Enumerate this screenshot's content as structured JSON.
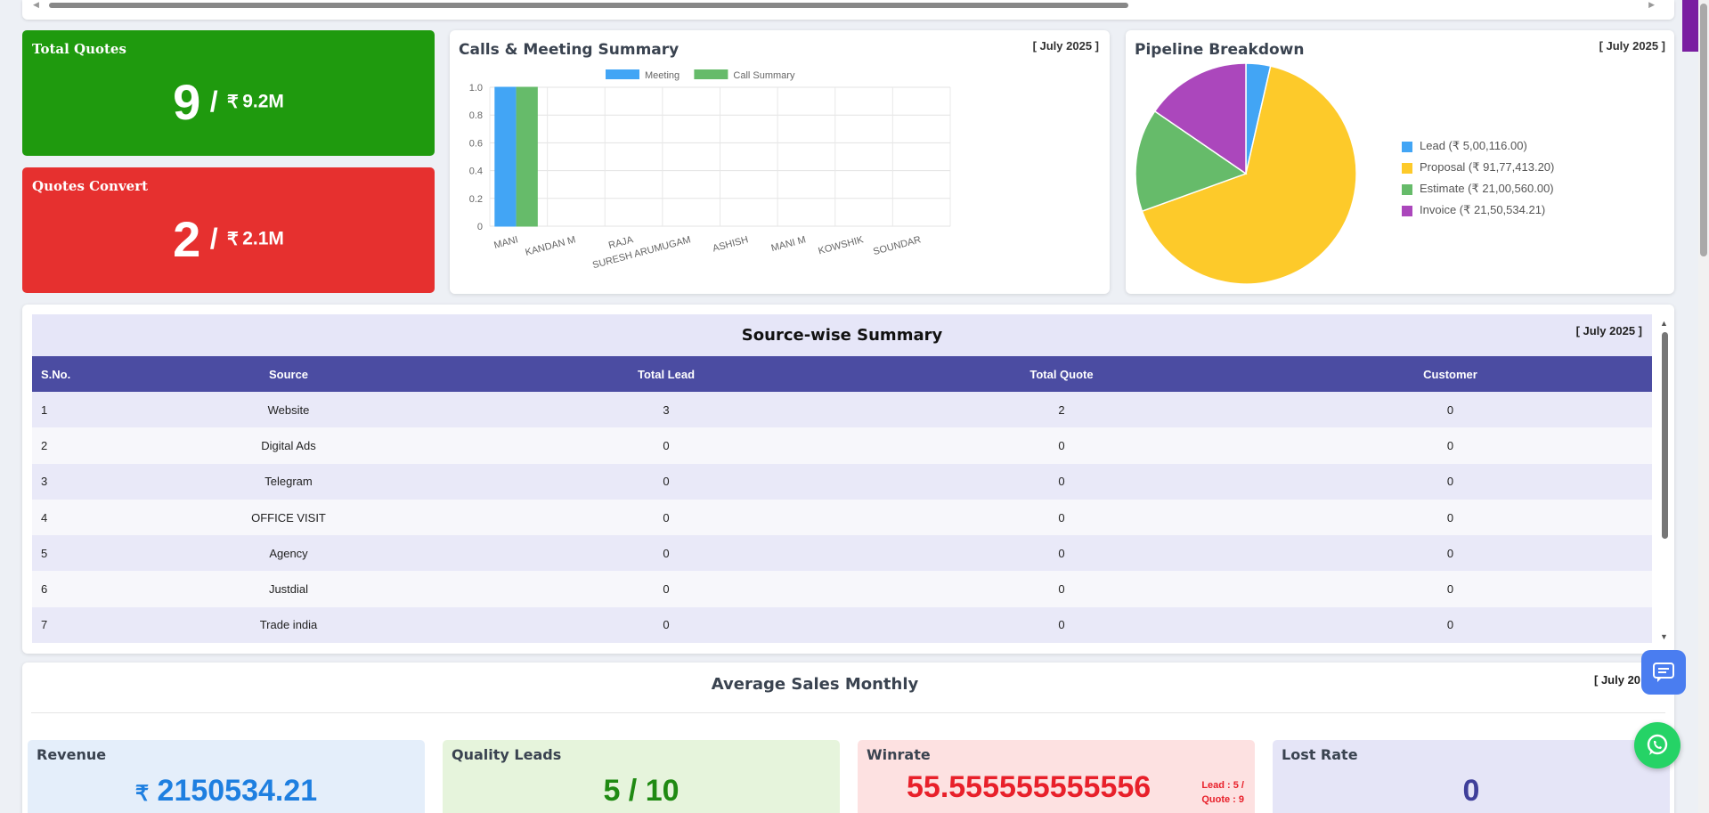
{
  "kpis": {
    "total_quotes": {
      "label": "Total Quotes",
      "count": "9",
      "slash": "/",
      "currency": "₹",
      "amount": "9.2M",
      "color": "#1f9a0e"
    },
    "quotes_convert": {
      "label": "Quotes Convert",
      "count": "2",
      "slash": "/",
      "currency": "₹",
      "amount": "2.1M",
      "color": "#e6302f"
    }
  },
  "calls_card": {
    "title": "Calls & Meeting Summary",
    "date": "[ July 2025 ]"
  },
  "pipeline_card": {
    "title": "Pipeline Breakdown",
    "date": "[ July 2025 ]"
  },
  "chart_data": [
    {
      "type": "bar",
      "title": "Calls & Meeting Summary",
      "categories": [
        "MANI",
        "KANDAN M",
        "RAJA",
        "SURESH ARUMUGAM",
        "ASHISH",
        "MANI M",
        "KOWSHIK",
        "SOUNDAR"
      ],
      "series": [
        {
          "name": "Meeting",
          "color": "#42a5f5",
          "values": [
            1,
            0,
            0,
            0,
            0,
            0,
            0,
            0
          ]
        },
        {
          "name": "Call Summary",
          "color": "#66bb6a",
          "values": [
            1,
            0,
            0,
            0,
            0,
            0,
            0,
            0
          ]
        }
      ],
      "yticks": [
        "0",
        "0.2",
        "0.4",
        "0.6",
        "0.8",
        "1.0"
      ],
      "ylim": [
        0,
        1
      ],
      "grid": true,
      "legend": "top"
    },
    {
      "type": "pie",
      "title": "Pipeline Breakdown",
      "slices": [
        {
          "label": "Lead (₹ 5,00,116.00)",
          "value": 500116.0,
          "color": "#42a5f5"
        },
        {
          "label": "Proposal (₹ 91,77,413.20)",
          "value": 9177413.2,
          "color": "#fdca2a"
        },
        {
          "label": "Estimate (₹ 21,00,560.00)",
          "value": 2100560.0,
          "color": "#66bb6a"
        },
        {
          "label": "Invoice (₹ 21,50,534.21)",
          "value": 2150534.21,
          "color": "#ab47bc"
        }
      ],
      "legend": "right"
    }
  ],
  "source_summary": {
    "title": "Source-wise Summary",
    "date": "[ July 2025 ]",
    "columns": [
      "S.No.",
      "Source",
      "Total Lead",
      "Total Quote",
      "Customer"
    ],
    "rows": [
      [
        "1",
        "Website",
        "3",
        "2",
        "0"
      ],
      [
        "2",
        "Digital Ads",
        "0",
        "0",
        "0"
      ],
      [
        "3",
        "Telegram",
        "0",
        "0",
        "0"
      ],
      [
        "4",
        "OFFICE VISIT",
        "0",
        "0",
        "0"
      ],
      [
        "5",
        "Agency",
        "0",
        "0",
        "0"
      ],
      [
        "6",
        "Justdial",
        "0",
        "0",
        "0"
      ],
      [
        "7",
        "Trade india",
        "0",
        "0",
        "0"
      ]
    ]
  },
  "avg_sales": {
    "title": "Average Sales Monthly",
    "date": "[ July 20",
    "revenue": {
      "label": "Revenue",
      "currency": "₹",
      "value": "2150534.21",
      "color": "#1e7fe0",
      "bg": "#e4eefa"
    },
    "quality_leads": {
      "label": "Quality Leads",
      "value": "5 / 10",
      "color": "#1f8a12",
      "bg": "#e6f4dc"
    },
    "winrate": {
      "label": "Winrate",
      "value": "55.555555555556",
      "color": "#e8202a",
      "bg": "#fde1e1",
      "lead_note": "Lead : 5 /",
      "quote_note": "Quote : 9"
    },
    "lost_rate": {
      "label": "Lost Rate",
      "value": "0",
      "color": "#3f3f9a",
      "bg": "#e5e5f7"
    }
  }
}
